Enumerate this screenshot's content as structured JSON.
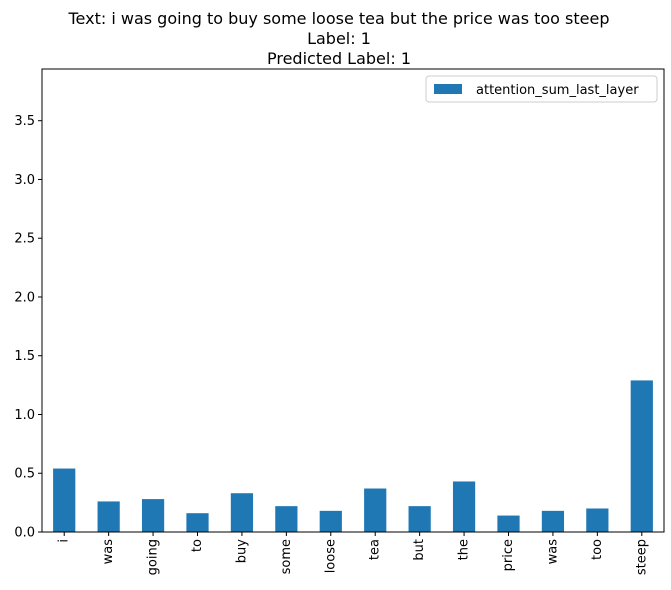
{
  "chart_data": {
    "type": "bar",
    "title_lines": [
      "Text: i was going to buy some loose tea but the price was too steep",
      "Label: 1",
      "Predicted Label: 1"
    ],
    "categories": [
      "i",
      "was",
      "going",
      "to",
      "buy",
      "some",
      "loose",
      "tea",
      "but",
      "the",
      "price",
      "was",
      "too",
      "steep"
    ],
    "series": [
      {
        "name": "attention_sum_last_layer",
        "color": "#1f77b4",
        "values": [
          0.54,
          0.26,
          0.28,
          0.16,
          0.33,
          0.22,
          0.18,
          0.37,
          0.22,
          0.43,
          0.14,
          0.18,
          0.2,
          1.29
        ]
      }
    ],
    "xlabel": "",
    "ylabel": "",
    "ylim": [
      0,
      3.94
    ],
    "yticks": [
      0.0,
      0.5,
      1.0,
      1.5,
      2.0,
      2.5,
      3.0,
      3.5
    ],
    "ytick_labels": [
      "0.0",
      "0.5",
      "1.0",
      "1.5",
      "2.0",
      "2.5",
      "3.0",
      "3.5"
    ],
    "grid": false,
    "legend_position": "upper right"
  }
}
